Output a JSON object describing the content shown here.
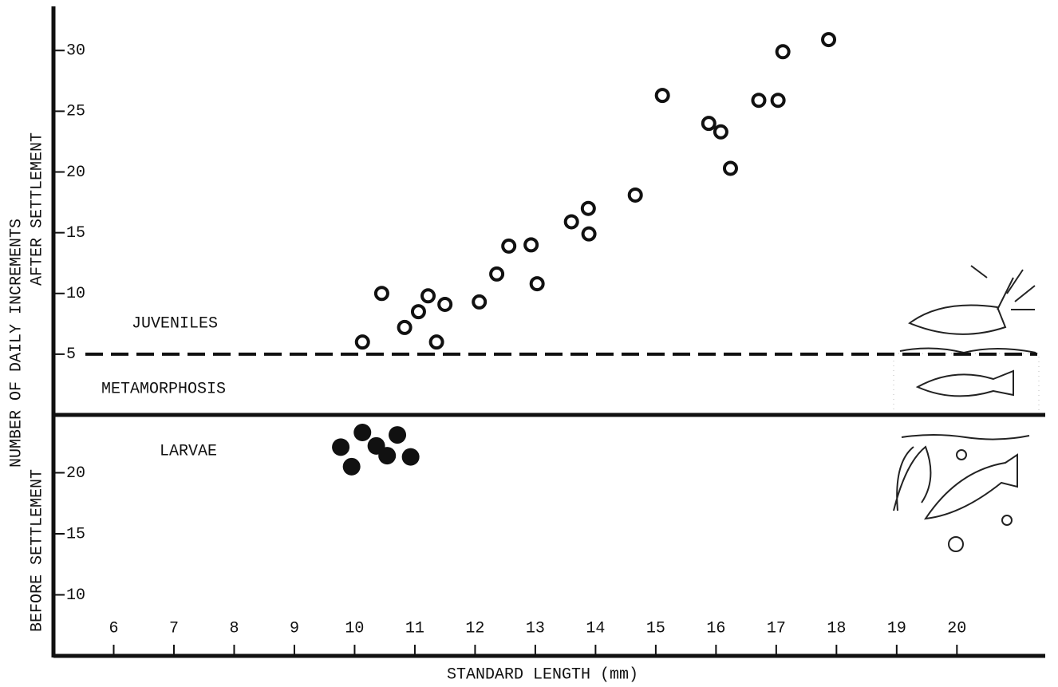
{
  "chart_data": [
    {
      "type": "scatter",
      "marker": "open",
      "color": "#111",
      "ylabel_lines": [
        "NUMBER OF DAILY INCREMENTS",
        "AFTER SETTLEMENT"
      ],
      "annotations": [
        "JUVENILES",
        "METAMORPHOSIS"
      ],
      "reference_line": 5,
      "ylim": [
        0,
        33.5
      ],
      "yticks": [
        5,
        10,
        15,
        20,
        25,
        30
      ],
      "x": [
        10.13,
        10.45,
        10.83,
        11.06,
        11.22,
        11.36,
        11.5,
        12.07,
        12.36,
        12.56,
        12.93,
        13.03,
        13.6,
        13.88,
        13.89,
        14.66,
        15.11,
        15.88,
        16.08,
        16.24,
        16.71,
        17.03,
        17.11,
        17.87
      ],
      "values": [
        6.0,
        10.0,
        7.2,
        8.5,
        9.8,
        6.0,
        9.1,
        9.3,
        11.6,
        13.9,
        14.0,
        10.8,
        15.9,
        17.0,
        14.9,
        18.1,
        26.3,
        24.0,
        23.3,
        20.3,
        25.9,
        25.9,
        29.9,
        30.9
      ]
    },
    {
      "type": "scatter",
      "marker": "filled",
      "color": "#111",
      "ylabel": "BEFORE SETTLEMENT",
      "xlabel": "STANDARD LENGTH (mm)",
      "annotations": [
        "LARVAE"
      ],
      "xlim": [
        5,
        21.4
      ],
      "xticks": [
        6,
        7,
        8,
        9,
        10,
        11,
        12,
        13,
        14,
        15,
        16,
        17,
        18,
        19,
        20
      ],
      "ylim": [
        5,
        25
      ],
      "yticks": [
        10,
        15,
        20
      ],
      "x": [
        9.77,
        10.13,
        10.36,
        9.95,
        10.54,
        10.71,
        10.93
      ],
      "values": [
        22.1,
        23.3,
        22.2,
        20.5,
        21.4,
        23.1,
        21.3
      ]
    }
  ]
}
